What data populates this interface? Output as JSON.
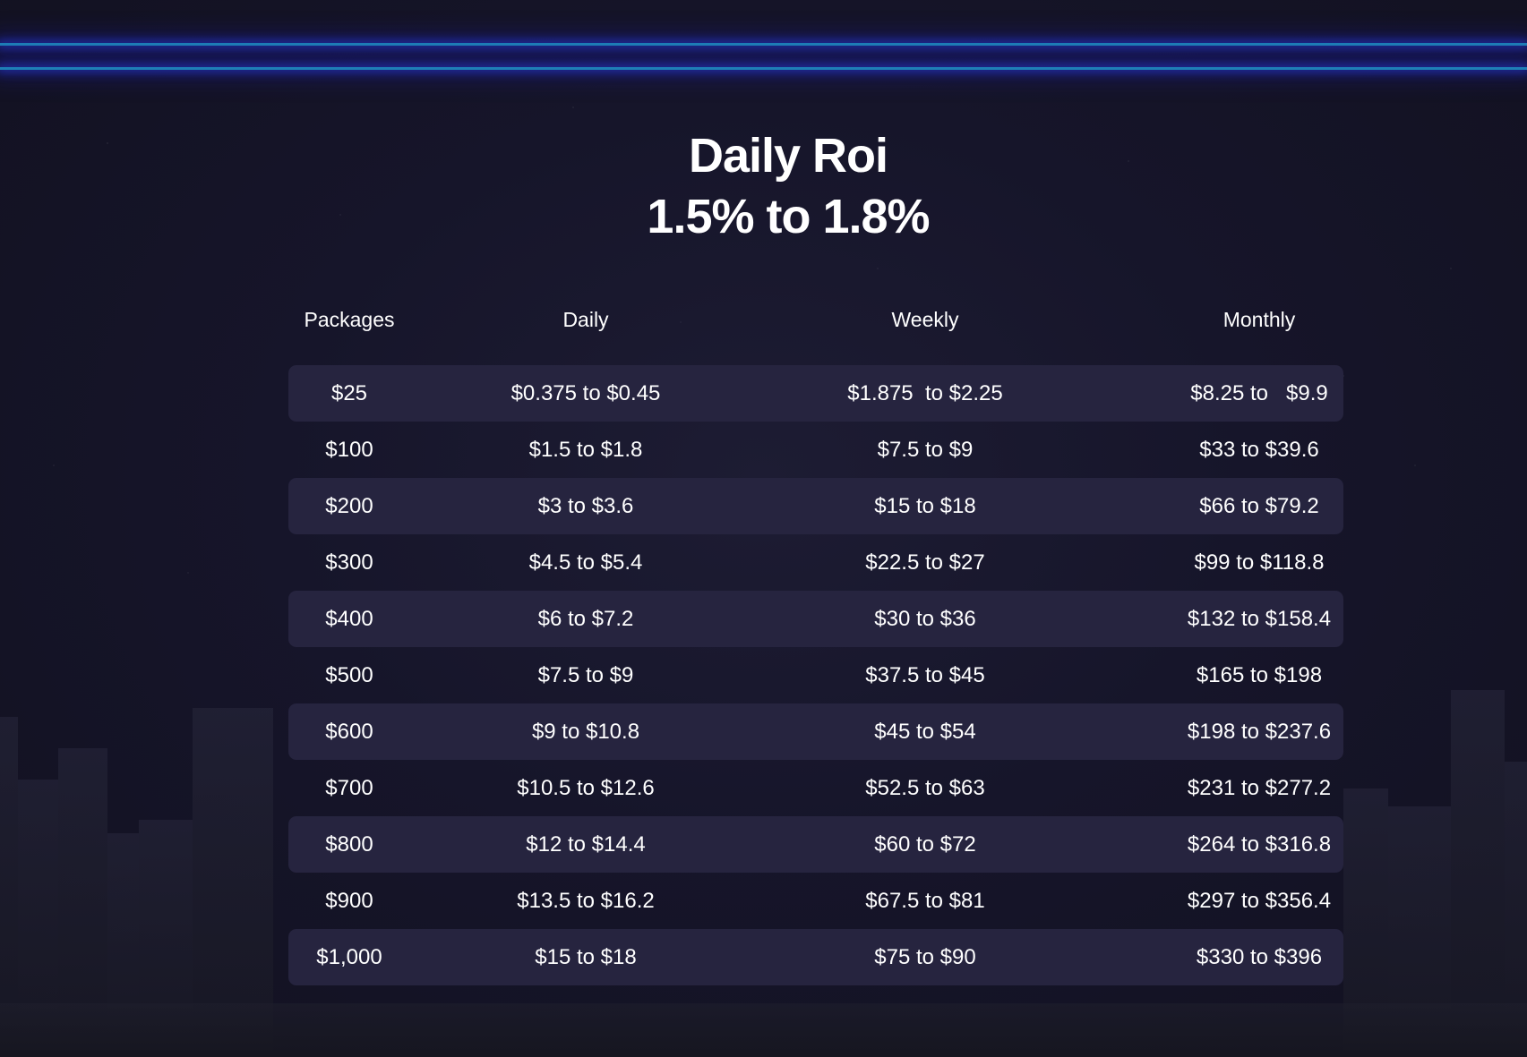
{
  "title": {
    "line1": "Daily Roi",
    "line2": "1.5% to 1.8%"
  },
  "table": {
    "columns": [
      "Packages",
      "Daily",
      "Weekly",
      "Monthly"
    ],
    "rows": [
      [
        "$25",
        "$0.375 to $0.45",
        "$1.875  to $2.25",
        "$8.25 to   $9.9"
      ],
      [
        "$100",
        "$1.5 to $1.8",
        "$7.5 to $9",
        "$33 to $39.6"
      ],
      [
        "$200",
        "$3 to $3.6",
        "$15 to $18",
        "$66 to $79.2"
      ],
      [
        "$300",
        "$4.5 to $5.4",
        "$22.5 to $27",
        "$99 to $118.8"
      ],
      [
        "$400",
        "$6 to $7.2",
        "$30 to $36",
        "$132 to $158.4"
      ],
      [
        "$500",
        "$7.5 to $9",
        "$37.5 to $45",
        "$165 to $198"
      ],
      [
        "$600",
        "$9 to $10.8",
        "$45 to $54",
        "$198 to $237.6"
      ],
      [
        "$700",
        "$10.5 to $12.6",
        "$52.5 to $63",
        "$231 to $277.2"
      ],
      [
        "$800",
        "$12 to $14.4",
        "$60 to $72",
        "$264 to $316.8"
      ],
      [
        "$900",
        "$13.5 to $16.2",
        "$67.5 to $81",
        "$297 to $356.4"
      ],
      [
        "$1,000",
        "$15 to $18",
        "$75 to $90",
        "$330 to $396"
      ]
    ]
  },
  "colors": {
    "background": "#14131f",
    "row_shade": "#26243f",
    "laser": "#1e7fb6",
    "text": "#ffffff"
  }
}
